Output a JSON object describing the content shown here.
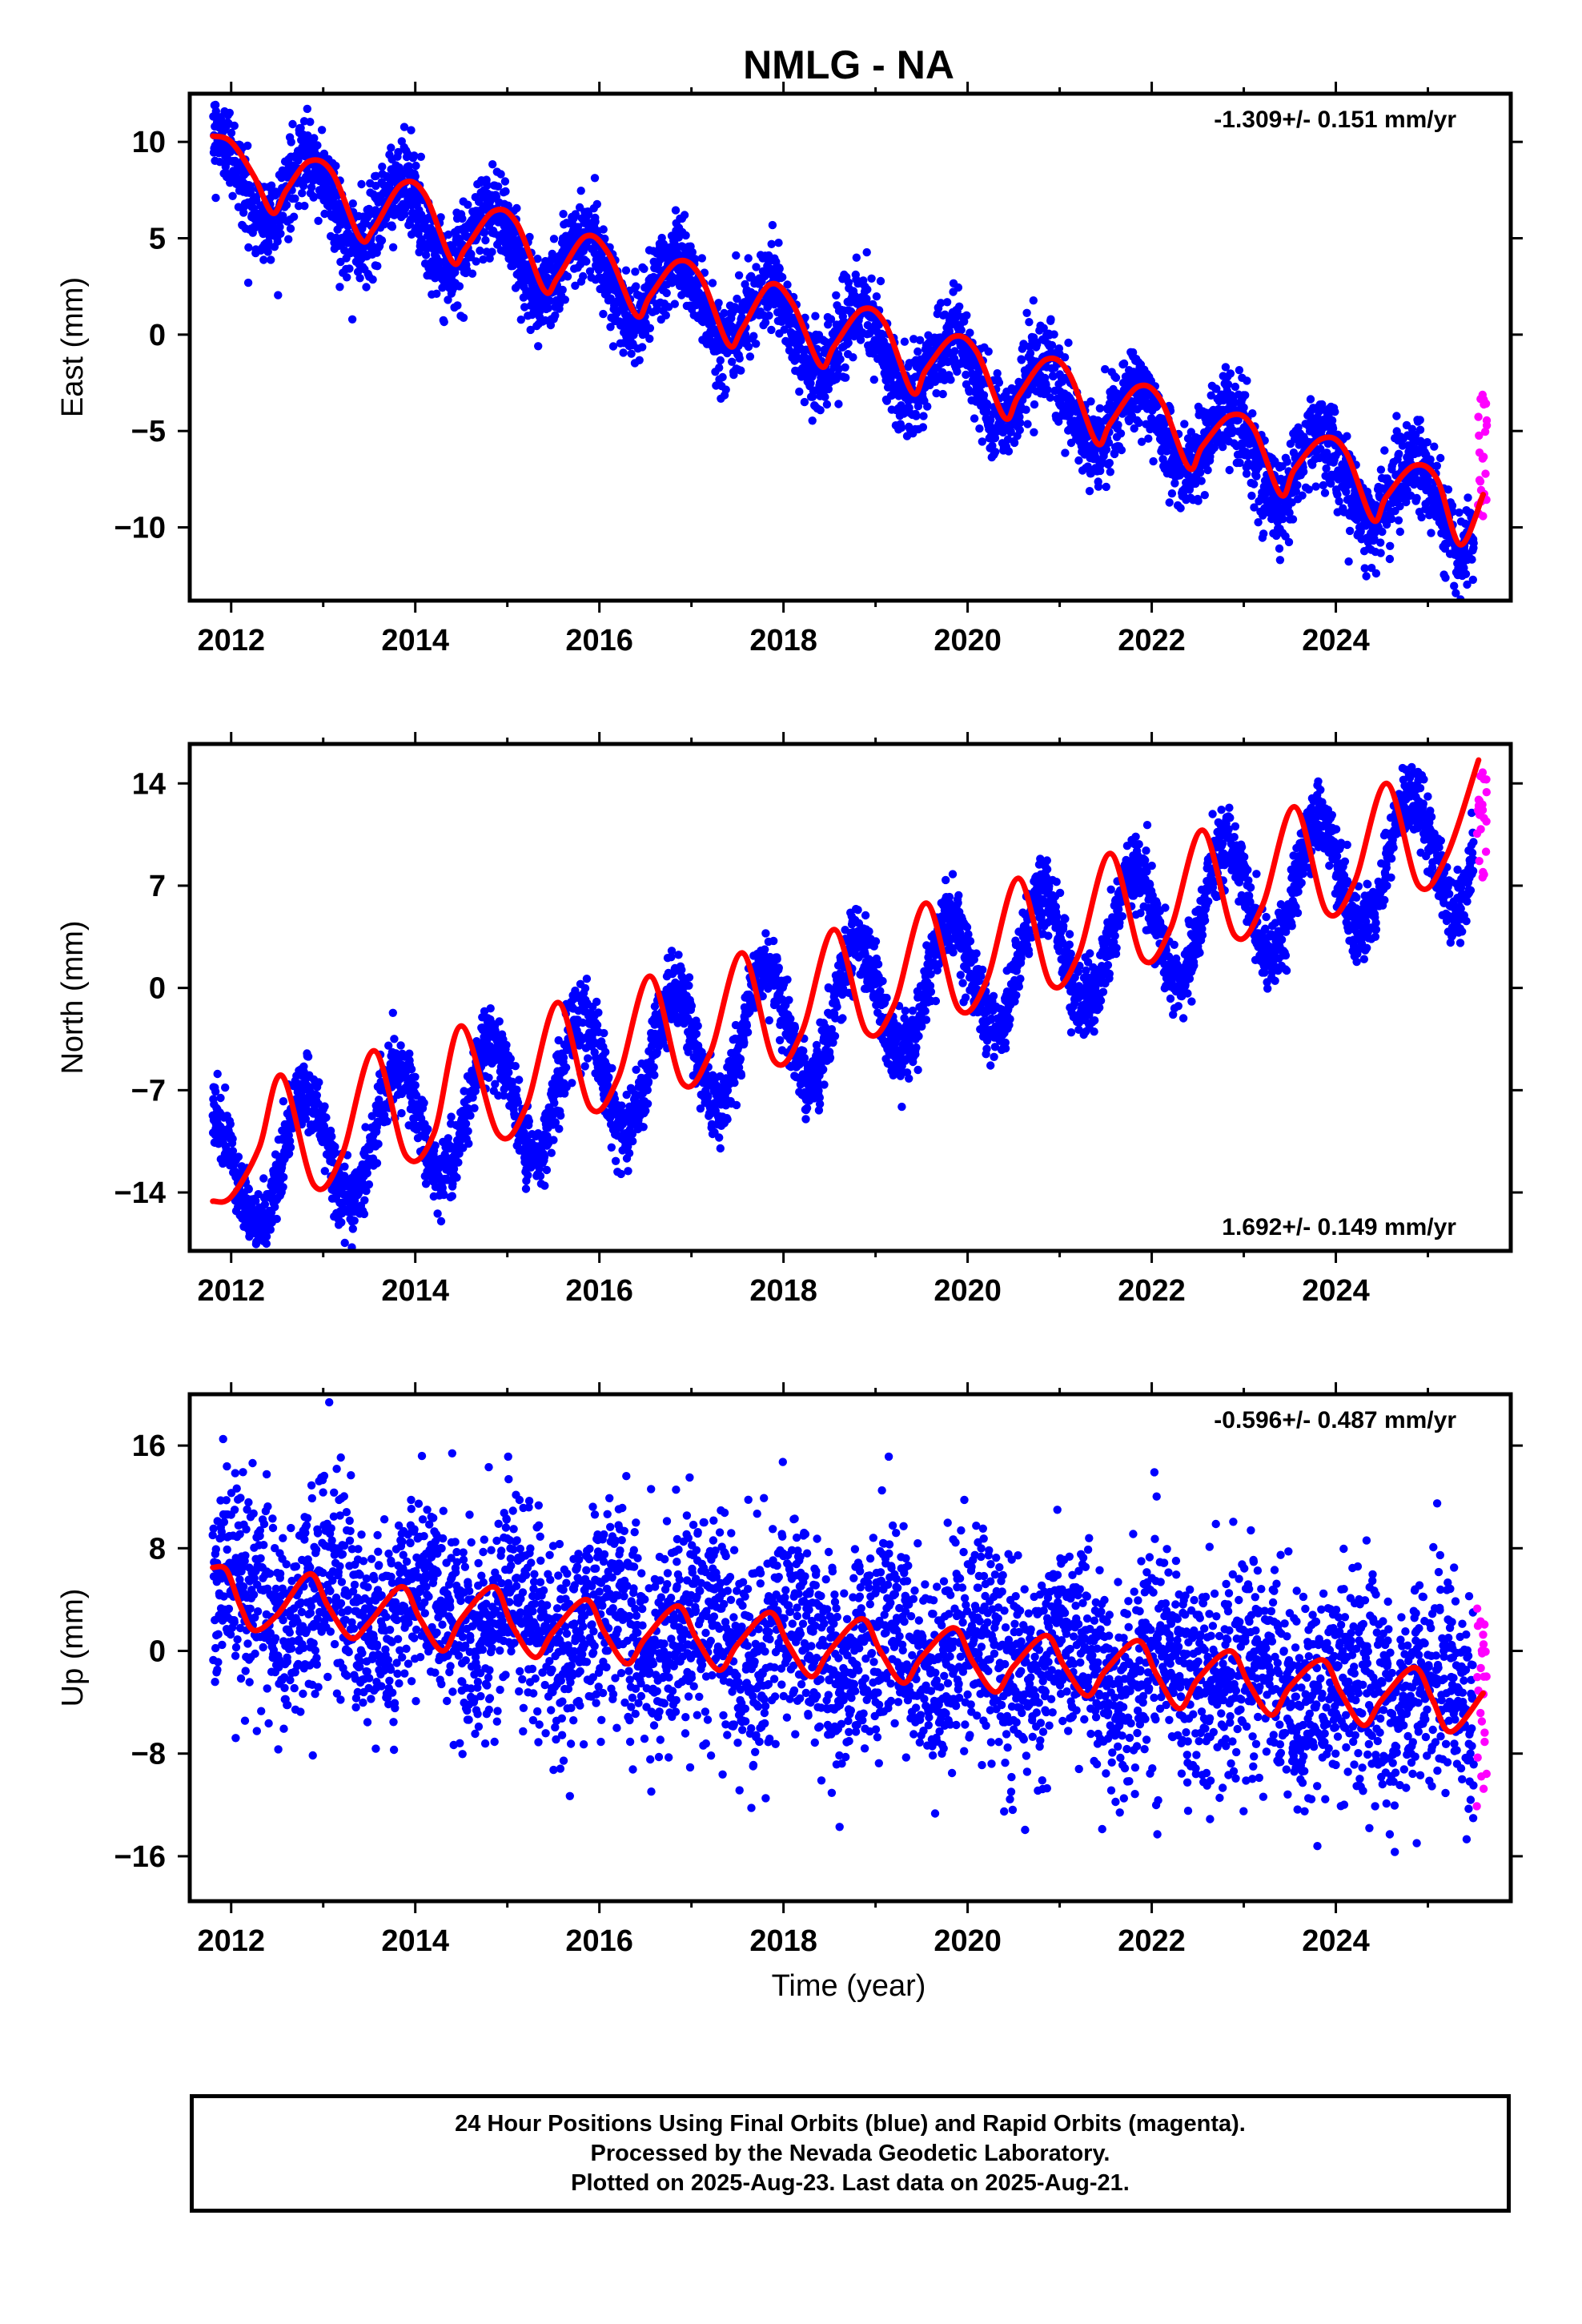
{
  "title": "NMLG - NA",
  "colors": {
    "final_orbits": "#0000ff",
    "rapid_orbits": "#ff00ff",
    "model_fit": "#ff0000",
    "axes": "#000000"
  },
  "xlabel": "Time (year)",
  "footer": {
    "line1": "24 Hour Positions Using Final Orbits (blue) and Rapid Orbits (magenta).",
    "line2": "Processed by the Nevada Geodetic Laboratory.",
    "line3": "Plotted on 2025-Aug-23. Last data on 2025-Aug-21."
  },
  "chart_data": [
    {
      "type": "scatter",
      "component": "east",
      "ylabel": "East (mm)",
      "rate_label": "-1.309+/- 0.151 mm/yr",
      "xlim": [
        2011.55,
        2025.9
      ],
      "ylim": [
        -13.8,
        12.5
      ],
      "xticks": [
        2012,
        2014,
        2016,
        2018,
        2020,
        2022,
        2024
      ],
      "yticks": [
        -10,
        -5,
        0,
        5,
        10
      ],
      "series": [
        {
          "role": "final_orbits_daily",
          "model": {
            "start": 2011.8,
            "end": 2025.5,
            "intercept_at_2018": 0.5,
            "rate": -1.309,
            "seasonal_amp": 1.9,
            "phase_year": 0.6,
            "scatter": 1.1
          }
        },
        {
          "role": "rapid_orbits_daily",
          "x_range": [
            2025.53,
            2025.64
          ],
          "y_range": [
            -9.5,
            -2.8
          ]
        },
        {
          "role": "model_fit",
          "points": [
            [
              2011.8,
              10.3
            ],
            [
              2012.0,
              10.0
            ],
            [
              2012.25,
              8.2
            ],
            [
              2012.45,
              6.3
            ],
            [
              2012.6,
              7.5
            ],
            [
              2012.85,
              9.0
            ],
            [
              2013.1,
              8.4
            ],
            [
              2013.4,
              5.0
            ],
            [
              2013.55,
              5.5
            ],
            [
              2013.85,
              7.8
            ],
            [
              2014.1,
              7.3
            ],
            [
              2014.4,
              3.8
            ],
            [
              2014.55,
              4.5
            ],
            [
              2014.85,
              6.4
            ],
            [
              2015.1,
              5.8
            ],
            [
              2015.4,
              2.3
            ],
            [
              2015.55,
              3.0
            ],
            [
              2015.85,
              5.1
            ],
            [
              2016.1,
              4.2
            ],
            [
              2016.4,
              1.0
            ],
            [
              2016.55,
              2.0
            ],
            [
              2016.85,
              3.8
            ],
            [
              2017.1,
              3.0
            ],
            [
              2017.4,
              -0.5
            ],
            [
              2017.55,
              0.3
            ],
            [
              2017.85,
              2.6
            ],
            [
              2018.1,
              1.6
            ],
            [
              2018.4,
              -1.6
            ],
            [
              2018.55,
              -0.6
            ],
            [
              2018.85,
              1.3
            ],
            [
              2019.1,
              0.6
            ],
            [
              2019.4,
              -3.0
            ],
            [
              2019.55,
              -1.8
            ],
            [
              2019.85,
              -0.1
            ],
            [
              2020.1,
              -0.9
            ],
            [
              2020.4,
              -4.3
            ],
            [
              2020.55,
              -3.2
            ],
            [
              2020.85,
              -1.3
            ],
            [
              2021.1,
              -2.0
            ],
            [
              2021.4,
              -5.6
            ],
            [
              2021.55,
              -4.6
            ],
            [
              2021.85,
              -2.7
            ],
            [
              2022.1,
              -3.4
            ],
            [
              2022.4,
              -6.9
            ],
            [
              2022.55,
              -5.8
            ],
            [
              2022.85,
              -4.2
            ],
            [
              2023.1,
              -4.8
            ],
            [
              2023.4,
              -8.3
            ],
            [
              2023.55,
              -7.0
            ],
            [
              2023.85,
              -5.4
            ],
            [
              2024.1,
              -6.0
            ],
            [
              2024.4,
              -9.6
            ],
            [
              2024.55,
              -8.4
            ],
            [
              2024.85,
              -6.8
            ],
            [
              2025.1,
              -7.5
            ],
            [
              2025.35,
              -10.9
            ],
            [
              2025.6,
              -8.3
            ]
          ]
        }
      ]
    },
    {
      "type": "scatter",
      "component": "north",
      "ylabel": "North (mm)",
      "rate_label": "1.692+/- 0.149 mm/yr",
      "xlim": [
        2011.55,
        2025.9
      ],
      "ylim": [
        -18,
        16.7
      ],
      "xticks": [
        2012,
        2014,
        2016,
        2018,
        2020,
        2022,
        2024
      ],
      "yticks": [
        -14,
        -7,
        0,
        7,
        14
      ],
      "series": [
        {
          "role": "final_orbits_daily",
          "model": {
            "start": 2011.8,
            "end": 2025.5,
            "intercept_at_2018": -2.5,
            "rate": 1.692,
            "seasonal_amp": 4.2,
            "phase_year": 0.55,
            "scatter": 1.2
          }
        },
        {
          "role": "rapid_orbits_daily",
          "x_range": [
            2025.53,
            2025.64
          ],
          "y_range": [
            7.5,
            15.5
          ]
        },
        {
          "role": "model_fit",
          "points": [
            [
              2011.8,
              -14.6
            ],
            [
              2012.0,
              -14.3
            ],
            [
              2012.3,
              -11.0
            ],
            [
              2012.55,
              -6.0
            ],
            [
              2012.9,
              -13.5
            ],
            [
              2013.2,
              -11.5
            ],
            [
              2013.55,
              -4.3
            ],
            [
              2013.9,
              -11.5
            ],
            [
              2014.2,
              -10.0
            ],
            [
              2014.5,
              -2.6
            ],
            [
              2014.9,
              -10.0
            ],
            [
              2015.2,
              -8.2
            ],
            [
              2015.55,
              -1.0
            ],
            [
              2015.9,
              -8.2
            ],
            [
              2016.2,
              -6.2
            ],
            [
              2016.55,
              0.8
            ],
            [
              2016.9,
              -6.5
            ],
            [
              2017.2,
              -4.5
            ],
            [
              2017.55,
              2.4
            ],
            [
              2017.9,
              -5.0
            ],
            [
              2018.2,
              -3.0
            ],
            [
              2018.55,
              4.0
            ],
            [
              2018.9,
              -3.0
            ],
            [
              2019.2,
              -1.2
            ],
            [
              2019.55,
              5.8
            ],
            [
              2019.9,
              -1.4
            ],
            [
              2020.2,
              0.4
            ],
            [
              2020.55,
              7.5
            ],
            [
              2020.9,
              0.3
            ],
            [
              2021.2,
              2.2
            ],
            [
              2021.55,
              9.2
            ],
            [
              2021.9,
              2.0
            ],
            [
              2022.2,
              4.0
            ],
            [
              2022.55,
              10.8
            ],
            [
              2022.9,
              3.6
            ],
            [
              2023.2,
              5.6
            ],
            [
              2023.55,
              12.4
            ],
            [
              2023.9,
              5.2
            ],
            [
              2024.2,
              7.2
            ],
            [
              2024.55,
              14.0
            ],
            [
              2024.9,
              7.0
            ],
            [
              2025.2,
              9.0
            ],
            [
              2025.55,
              15.6
            ]
          ]
        }
      ]
    },
    {
      "type": "scatter",
      "component": "up",
      "ylabel": "Up (mm)",
      "rate_label": "-0.596+/- 0.487 mm/yr",
      "xlim": [
        2011.55,
        2025.9
      ],
      "ylim": [
        -19.5,
        20
      ],
      "xticks": [
        2012,
        2014,
        2016,
        2018,
        2020,
        2022,
        2024
      ],
      "yticks": [
        -16,
        -8,
        0,
        8,
        16
      ],
      "series": [
        {
          "role": "final_orbits_daily",
          "model": {
            "start": 2011.8,
            "end": 2025.5,
            "intercept_at_2018": 0.8,
            "rate": -0.596,
            "seasonal_amp": 2.0,
            "phase_year": 0.85,
            "scatter": 4.0
          }
        },
        {
          "role": "rapid_orbits_daily",
          "x_range": [
            2025.53,
            2025.64
          ],
          "y_range": [
            -12.5,
            5.0
          ]
        },
        {
          "role": "model_fit",
          "points": [
            [
              2011.8,
              6.5
            ],
            [
              2011.95,
              6.3
            ],
            [
              2012.1,
              3.5
            ],
            [
              2012.25,
              1.6
            ],
            [
              2012.5,
              2.8
            ],
            [
              2012.85,
              6.0
            ],
            [
              2013.05,
              3.5
            ],
            [
              2013.3,
              1.0
            ],
            [
              2013.5,
              2.2
            ],
            [
              2013.85,
              5.0
            ],
            [
              2014.05,
              2.5
            ],
            [
              2014.3,
              0.0
            ],
            [
              2014.5,
              2.5
            ],
            [
              2014.85,
              5.0
            ],
            [
              2015.05,
              2.0
            ],
            [
              2015.3,
              -0.5
            ],
            [
              2015.5,
              1.5
            ],
            [
              2015.85,
              4.0
            ],
            [
              2016.05,
              1.5
            ],
            [
              2016.3,
              -1.0
            ],
            [
              2016.5,
              1.0
            ],
            [
              2016.85,
              3.5
            ],
            [
              2017.05,
              1.0
            ],
            [
              2017.3,
              -1.5
            ],
            [
              2017.5,
              0.5
            ],
            [
              2017.85,
              3.0
            ],
            [
              2018.05,
              0.5
            ],
            [
              2018.3,
              -2.0
            ],
            [
              2018.5,
              0.0
            ],
            [
              2018.85,
              2.5
            ],
            [
              2019.05,
              0.0
            ],
            [
              2019.3,
              -2.5
            ],
            [
              2019.5,
              -0.5
            ],
            [
              2019.85,
              1.8
            ],
            [
              2020.05,
              -0.8
            ],
            [
              2020.3,
              -3.2
            ],
            [
              2020.5,
              -1.2
            ],
            [
              2020.85,
              1.2
            ],
            [
              2021.05,
              -1.2
            ],
            [
              2021.3,
              -3.5
            ],
            [
              2021.5,
              -1.5
            ],
            [
              2021.85,
              0.8
            ],
            [
              2022.05,
              -1.8
            ],
            [
              2022.3,
              -4.5
            ],
            [
              2022.5,
              -2.2
            ],
            [
              2022.85,
              0.0
            ],
            [
              2023.05,
              -2.5
            ],
            [
              2023.3,
              -5.0
            ],
            [
              2023.5,
              -2.8
            ],
            [
              2023.85,
              -0.7
            ],
            [
              2024.05,
              -3.2
            ],
            [
              2024.3,
              -5.8
            ],
            [
              2024.5,
              -3.8
            ],
            [
              2024.85,
              -1.3
            ],
            [
              2025.05,
              -3.8
            ],
            [
              2025.25,
              -6.3
            ],
            [
              2025.6,
              -3.3
            ]
          ]
        }
      ]
    }
  ]
}
